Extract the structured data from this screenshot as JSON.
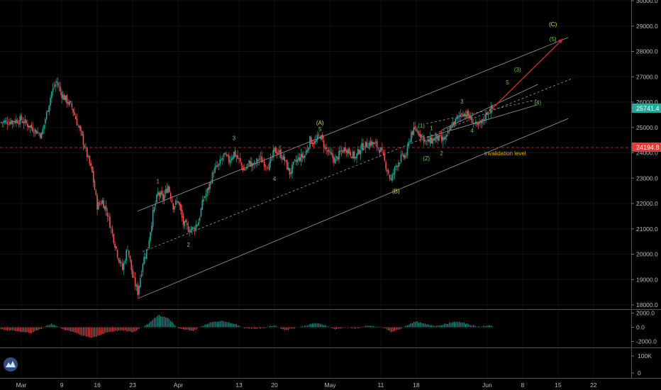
{
  "chart_data": {
    "type": "candlestick",
    "last_price": "25741.4",
    "invalidation_price": "24194.8",
    "invalidation_label": "invalidation level",
    "price_axis": {
      "ylim": [
        17800,
        30000
      ],
      "ticks": [
        "30000.0",
        "29000.0",
        "28000.0",
        "27000.0",
        "26000.0",
        "25000.0",
        "24000.0",
        "23000.0",
        "22000.0",
        "21000.0",
        "20000.0",
        "19000.0",
        "18000.0"
      ]
    },
    "oscillator_axis": {
      "ylim": [
        -3000,
        2600
      ],
      "ticks": [
        "2000.0",
        "0.0",
        "-2000.0"
      ]
    },
    "volume_axis": {
      "ticks": [
        "100K",
        "0"
      ]
    },
    "x_ticks": [
      {
        "label": "Mar",
        "day": 0
      },
      {
        "label": "9",
        "day": 8
      },
      {
        "label": "16",
        "day": 15
      },
      {
        "label": "23",
        "day": 22
      },
      {
        "label": "Apr",
        "day": 31
      },
      {
        "label": "13",
        "day": 43
      },
      {
        "label": "20",
        "day": 50
      },
      {
        "label": "May",
        "day": 61
      },
      {
        "label": "11",
        "day": 71
      },
      {
        "label": "18",
        "day": 78
      },
      {
        "label": "Jun",
        "day": 92
      },
      {
        "label": "8",
        "day": 99
      },
      {
        "label": "15",
        "day": 106
      },
      {
        "label": "22",
        "day": 113
      }
    ],
    "price_path": [
      [
        -4,
        25200
      ],
      [
        0,
        25300
      ],
      [
        2,
        25000
      ],
      [
        4,
        24700
      ],
      [
        6,
        26400
      ],
      [
        7,
        26800
      ],
      [
        8,
        26300
      ],
      [
        10,
        25800
      ],
      [
        12,
        24600
      ],
      [
        14,
        23200
      ],
      [
        15,
        21900
      ],
      [
        16,
        22100
      ],
      [
        17,
        21600
      ],
      [
        18,
        20800
      ],
      [
        19,
        20000
      ],
      [
        20,
        19400
      ],
      [
        21,
        20300
      ],
      [
        22,
        19100
      ],
      [
        23,
        18500
      ],
      [
        24,
        19700
      ],
      [
        25,
        20300
      ],
      [
        26,
        21600
      ],
      [
        27,
        22400
      ],
      [
        28,
        22200
      ],
      [
        29,
        22700
      ],
      [
        30,
        21900
      ],
      [
        31,
        22100
      ],
      [
        32,
        21200
      ],
      [
        33,
        21000
      ],
      [
        34,
        21000
      ],
      [
        35,
        21300
      ],
      [
        36,
        22200
      ],
      [
        37,
        22600
      ],
      [
        38,
        23300
      ],
      [
        39,
        23500
      ],
      [
        40,
        23900
      ],
      [
        41,
        23700
      ],
      [
        42,
        24000
      ],
      [
        43,
        23700
      ],
      [
        44,
        23300
      ],
      [
        45,
        23600
      ],
      [
        46,
        23500
      ],
      [
        47,
        23800
      ],
      [
        48,
        23600
      ],
      [
        49,
        23500
      ],
      [
        50,
        24100
      ],
      [
        51,
        24000
      ],
      [
        52,
        23700
      ],
      [
        53,
        23200
      ],
      [
        54,
        23600
      ],
      [
        55,
        23800
      ],
      [
        56,
        23900
      ],
      [
        57,
        24500
      ],
      [
        58,
        24400
      ],
      [
        59,
        24700
      ],
      [
        60,
        24200
      ],
      [
        61,
        23900
      ],
      [
        62,
        23700
      ],
      [
        63,
        24000
      ],
      [
        64,
        24200
      ],
      [
        65,
        24000
      ],
      [
        66,
        23800
      ],
      [
        67,
        24200
      ],
      [
        68,
        24300
      ],
      [
        69,
        24400
      ],
      [
        70,
        24300
      ],
      [
        71,
        24100
      ],
      [
        72,
        23500
      ],
      [
        73,
        22900
      ],
      [
        74,
        23500
      ],
      [
        75,
        23800
      ],
      [
        76,
        23900
      ],
      [
        77,
        24800
      ],
      [
        78,
        24900
      ],
      [
        79,
        24700
      ],
      [
        80,
        24400
      ],
      [
        81,
        24500
      ],
      [
        82,
        24600
      ],
      [
        83,
        24500
      ],
      [
        84,
        24600
      ],
      [
        85,
        25100
      ],
      [
        86,
        25300
      ],
      [
        87,
        25600
      ],
      [
        88,
        25500
      ],
      [
        89,
        25300
      ],
      [
        90,
        25000
      ],
      [
        91,
        25200
      ],
      [
        92,
        25600
      ],
      [
        93,
        25740
      ]
    ],
    "oscillator_path": [
      [
        -4,
        -300
      ],
      [
        2,
        -800
      ],
      [
        6,
        500
      ],
      [
        8,
        -200
      ],
      [
        11,
        -900
      ],
      [
        14,
        -1500
      ],
      [
        17,
        -700
      ],
      [
        20,
        -400
      ],
      [
        22,
        -700
      ],
      [
        25,
        500
      ],
      [
        27,
        1700
      ],
      [
        29,
        1300
      ],
      [
        31,
        -200
      ],
      [
        34,
        -500
      ],
      [
        36,
        300
      ],
      [
        38,
        800
      ],
      [
        40,
        900
      ],
      [
        42,
        500
      ],
      [
        44,
        -100
      ],
      [
        46,
        -200
      ],
      [
        48,
        -100
      ],
      [
        50,
        300
      ],
      [
        52,
        -400
      ],
      [
        54,
        -100
      ],
      [
        56,
        200
      ],
      [
        58,
        600
      ],
      [
        60,
        300
      ],
      [
        62,
        -300
      ],
      [
        64,
        0
      ],
      [
        66,
        -200
      ],
      [
        68,
        200
      ],
      [
        70,
        100
      ],
      [
        72,
        -200
      ],
      [
        73,
        -700
      ],
      [
        75,
        -200
      ],
      [
        77,
        600
      ],
      [
        78,
        800
      ],
      [
        80,
        400
      ],
      [
        82,
        200
      ],
      [
        84,
        500
      ],
      [
        86,
        800
      ],
      [
        88,
        500
      ],
      [
        90,
        100
      ],
      [
        92,
        200
      ],
      [
        93,
        200
      ]
    ],
    "volume_values": [],
    "annotations": [
      {
        "text": "1",
        "color": "#66cc44",
        "day": 27,
        "price": 22800
      },
      {
        "text": "2",
        "color": "#66cc44",
        "day": 33,
        "price": 20300
      },
      {
        "text": "3",
        "color": "#66cc44",
        "day": 42,
        "price": 24500
      },
      {
        "text": "4",
        "color": "#66cc44",
        "day": 50,
        "price": 22900
      },
      {
        "text": "(A)",
        "color": "#e6d84a",
        "day": 59,
        "price": 25100
      },
      {
        "text": "5",
        "color": "#66cc44",
        "day": 59,
        "price": 24850
      },
      {
        "text": "(B)",
        "color": "#e6d84a",
        "day": 74,
        "price": 22400
      },
      {
        "text": "(1)",
        "color": "#66cc44",
        "day": 79,
        "price": 25000
      },
      {
        "text": "1",
        "color": "#66cc44",
        "day": 81,
        "price": 24900
      },
      {
        "text": "(2)",
        "color": "#66cc44",
        "day": 80,
        "price": 23700
      },
      {
        "text": "2",
        "color": "#66cc44",
        "day": 83,
        "price": 23900
      },
      {
        "text": "3",
        "color": "#66cc44",
        "day": 87,
        "price": 25950
      },
      {
        "text": "4",
        "color": "#66cc44",
        "day": 89,
        "price": 24800
      },
      {
        "text": "5",
        "color": "#66cc44",
        "day": 96,
        "price": 26700
      },
      {
        "text": "(3)",
        "color": "#66cc44",
        "day": 98,
        "price": 27200
      },
      {
        "text": "(4)",
        "color": "#66cc44",
        "day": 102,
        "price": 25900
      },
      {
        "text": "(5)",
        "color": "#66cc44",
        "day": 105,
        "price": 28400
      },
      {
        "text": "(C)",
        "color": "#e6d84a",
        "day": 105,
        "price": 29000
      }
    ]
  }
}
